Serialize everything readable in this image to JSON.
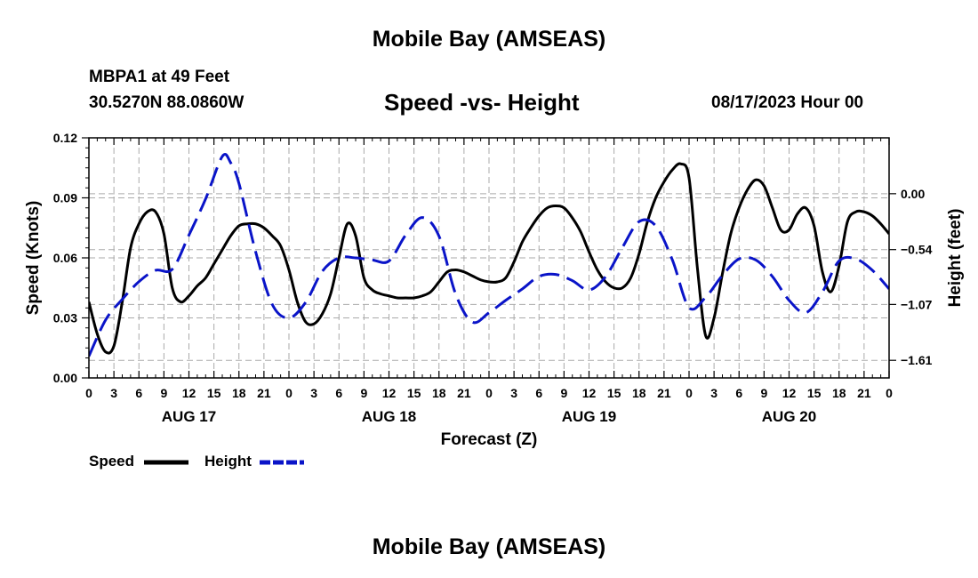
{
  "header": {
    "title": "Mobile Bay (AMSEAS)",
    "station": "MBPA1 at 49 Feet",
    "coords": "30.5270N  88.0860W",
    "subtitle": "Speed -vs- Height",
    "datetime": "08/17/2023 Hour 00"
  },
  "footer": {
    "title": "Mobile Bay (AMSEAS)"
  },
  "legend": {
    "speed_label": "Speed",
    "height_label": "Height"
  },
  "colors": {
    "speed": "#000000",
    "height": "#0a14c8",
    "grid": "#aaaaaa"
  },
  "chart_data": {
    "type": "line",
    "title": "Speed -vs- Height",
    "xlabel": "Forecast (Z)",
    "ylabel": "Speed (Knots)",
    "y2label": "Height (feet)",
    "xlim": [
      0,
      96
    ],
    "ylim": [
      0,
      0.12
    ],
    "y2lim": [
      -1.78,
      0.54
    ],
    "x_ticks": [
      0,
      3,
      6,
      9,
      12,
      15,
      18,
      21,
      24,
      27,
      30,
      33,
      36,
      39,
      42,
      45,
      48,
      51,
      54,
      57,
      60,
      63,
      66,
      69,
      72,
      75,
      78,
      81,
      84,
      87,
      90,
      93,
      96
    ],
    "x_tick_labels": [
      "0",
      "3",
      "6",
      "9",
      "12",
      "15",
      "18",
      "21",
      "0",
      "3",
      "6",
      "9",
      "12",
      "15",
      "18",
      "21",
      "0",
      "3",
      "6",
      "9",
      "12",
      "15",
      "18",
      "21",
      "0",
      "3",
      "6",
      "9",
      "12",
      "15",
      "18",
      "21",
      "0"
    ],
    "day_labels": [
      {
        "x": 12,
        "label": "AUG 17"
      },
      {
        "x": 36,
        "label": "AUG 18"
      },
      {
        "x": 60,
        "label": "AUG 19"
      },
      {
        "x": 84,
        "label": "AUG 20"
      }
    ],
    "y_ticks": [
      0.0,
      0.03,
      0.06,
      0.09,
      0.12
    ],
    "y_tick_labels": [
      "0.00",
      "0.03",
      "0.06",
      "0.09",
      "0.12"
    ],
    "y2_ticks": [
      0.0,
      -0.54,
      -1.07,
      -1.61
    ],
    "y2_tick_labels": [
      "0.00",
      "−0.54",
      "−1.07",
      "−1.61"
    ],
    "series": [
      {
        "name": "Speed",
        "axis": "left",
        "style": "solid",
        "x": [
          0,
          1,
          2,
          3,
          4,
          5,
          6,
          7,
          8,
          9,
          10,
          11,
          12,
          13,
          14,
          15,
          16,
          17,
          18,
          19,
          20,
          21,
          22,
          23,
          24,
          25,
          26,
          27,
          28,
          29,
          30,
          31,
          32,
          33,
          34,
          35,
          36,
          37,
          38,
          39,
          40,
          41,
          42,
          43,
          44,
          45,
          46,
          47,
          48,
          49,
          50,
          51,
          52,
          53,
          54,
          55,
          56,
          57,
          58,
          59,
          60,
          61,
          62,
          63,
          64,
          65,
          66,
          67,
          68,
          69,
          70,
          71,
          72,
          73,
          74,
          75,
          76,
          77,
          78,
          79,
          80,
          81,
          82,
          83,
          84,
          85,
          86,
          87,
          88,
          89,
          90,
          91,
          92,
          93,
          94,
          95,
          96
        ],
        "values": [
          0.038,
          0.022,
          0.013,
          0.016,
          0.038,
          0.065,
          0.077,
          0.083,
          0.083,
          0.072,
          0.045,
          0.038,
          0.041,
          0.046,
          0.05,
          0.057,
          0.064,
          0.071,
          0.076,
          0.077,
          0.077,
          0.075,
          0.071,
          0.066,
          0.054,
          0.038,
          0.028,
          0.027,
          0.032,
          0.042,
          0.06,
          0.077,
          0.071,
          0.05,
          0.044,
          0.042,
          0.041,
          0.04,
          0.04,
          0.04,
          0.041,
          0.043,
          0.048,
          0.053,
          0.054,
          0.053,
          0.051,
          0.049,
          0.048,
          0.048,
          0.05,
          0.058,
          0.068,
          0.075,
          0.081,
          0.085,
          0.086,
          0.085,
          0.08,
          0.073,
          0.063,
          0.054,
          0.048,
          0.045,
          0.045,
          0.05,
          0.062,
          0.078,
          0.09,
          0.098,
          0.104,
          0.107,
          0.1,
          0.055,
          0.021,
          0.03,
          0.052,
          0.072,
          0.085,
          0.094,
          0.099,
          0.096,
          0.085,
          0.074,
          0.074,
          0.082,
          0.085,
          0.076,
          0.053,
          0.043,
          0.056,
          0.078,
          0.083,
          0.083,
          0.081,
          0.077,
          0.072
        ]
      },
      {
        "name": "Height",
        "axis": "right",
        "style": "dashed",
        "x": [
          0,
          2,
          4,
          6,
          8,
          10,
          12,
          14,
          16,
          17,
          18,
          20,
          22,
          24,
          26,
          28,
          30,
          32,
          34,
          36,
          38,
          40,
          42,
          44,
          46,
          48,
          50,
          52,
          54,
          56,
          58,
          60,
          62,
          64,
          66,
          68,
          70,
          72,
          74,
          76,
          78,
          80,
          82,
          84,
          86,
          88,
          90,
          92,
          94,
          96
        ],
        "values": [
          -1.57,
          -1.22,
          -1.02,
          -0.85,
          -0.74,
          -0.73,
          -0.4,
          -0.05,
          0.36,
          0.3,
          0.1,
          -0.56,
          -1.07,
          -1.2,
          -1.05,
          -0.75,
          -0.62,
          -0.62,
          -0.64,
          -0.65,
          -0.4,
          -0.23,
          -0.41,
          -0.97,
          -1.24,
          -1.15,
          -1.03,
          -0.92,
          -0.8,
          -0.78,
          -0.84,
          -0.93,
          -0.8,
          -0.52,
          -0.27,
          -0.31,
          -0.64,
          -1.1,
          -1.0,
          -0.79,
          -0.63,
          -0.64,
          -0.8,
          -1.03,
          -1.15,
          -0.95,
          -0.65,
          -0.63,
          -0.74,
          -0.92
        ]
      }
    ]
  }
}
